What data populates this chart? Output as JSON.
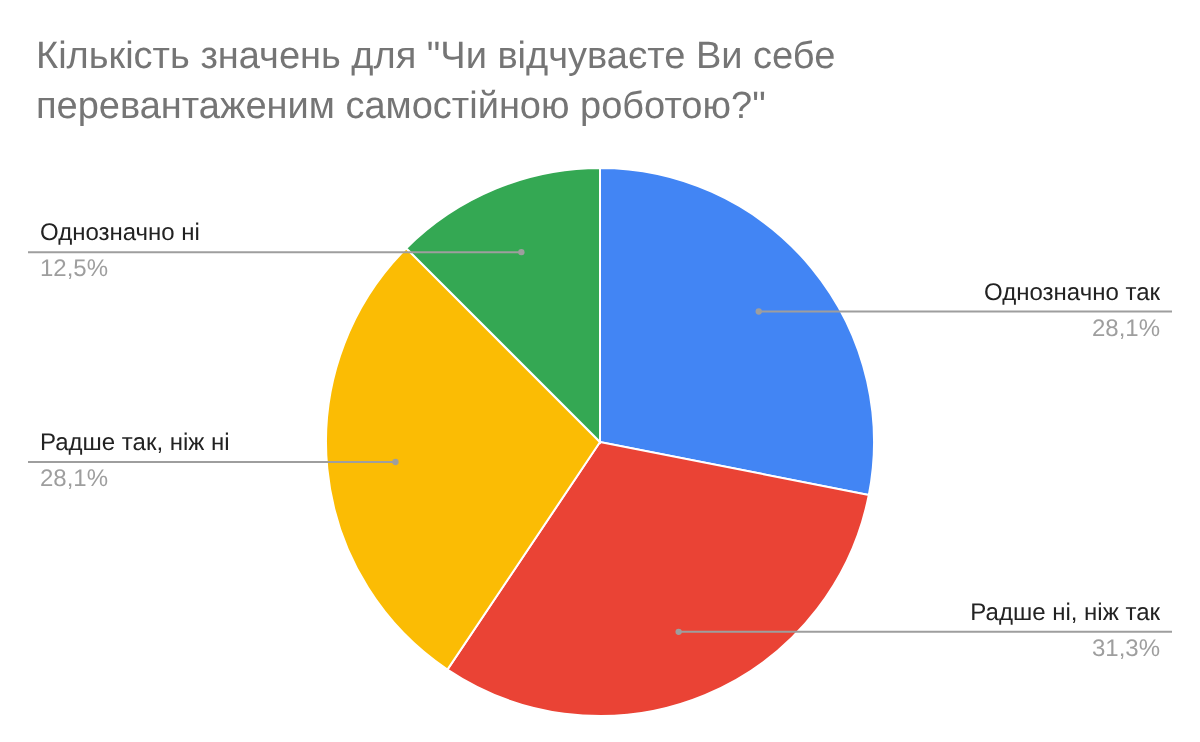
{
  "chart_data": {
    "type": "pie",
    "title": "Кількість значень для \"Чи відчуваєте Ви себе перевантаженим самостійною роботою?\"",
    "categories": [
      "Однозначно так",
      "Радше ні, ніж так",
      "Радше так, ніж ні",
      "Однозначно ні"
    ],
    "values": [
      28.1,
      31.3,
      28.1,
      12.5
    ],
    "value_labels": [
      "28,1%",
      "31,3%",
      "28,1%",
      "12,5%"
    ],
    "colors": [
      "#4285f4",
      "#ea4335",
      "#fbbc04",
      "#34a853"
    ]
  }
}
